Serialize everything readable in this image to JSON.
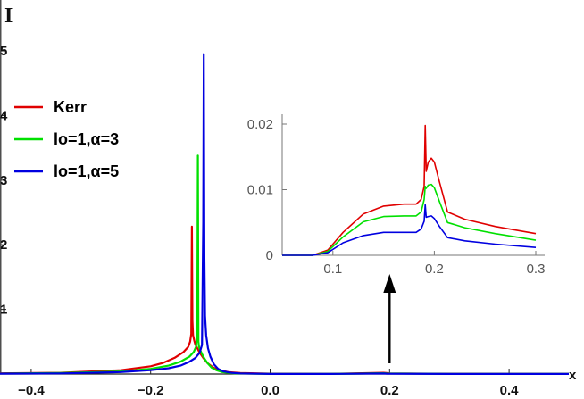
{
  "chart_data": {
    "type": "line",
    "ylabel": "I",
    "xlabel": "x",
    "xlim": [
      -0.5,
      0.5
    ],
    "ylim": [
      0,
      5.1
    ],
    "xticks": [
      -0.4,
      -0.2,
      0.0,
      0.2,
      0.4
    ],
    "xtick_labels": [
      "−0.4",
      "−0.2",
      "0.0",
      "0.2",
      "0.4"
    ],
    "yticks": [
      1,
      2,
      3,
      4,
      5
    ],
    "ytick_labels": [
      "1",
      "2",
      "3",
      "4",
      "5"
    ],
    "legend_position": "upper-left",
    "series": [
      {
        "name": "Kerr",
        "color": "#e00000",
        "x": [
          -0.5,
          -0.35,
          -0.25,
          -0.2,
          -0.18,
          -0.16,
          -0.145,
          -0.137,
          -0.134,
          -0.132,
          -0.131,
          -0.13,
          -0.129,
          -0.127,
          -0.125,
          -0.122,
          -0.118,
          -0.112,
          -0.105,
          -0.095,
          -0.085,
          -0.07,
          -0.05,
          0.0,
          0.1,
          0.19,
          0.195,
          0.2,
          0.3,
          0.5
        ],
        "y": [
          0.005,
          0.02,
          0.06,
          0.12,
          0.17,
          0.25,
          0.34,
          0.42,
          0.5,
          0.62,
          2.28,
          0.82,
          0.6,
          0.52,
          0.45,
          0.4,
          0.33,
          0.25,
          0.17,
          0.1,
          0.06,
          0.03,
          0.015,
          0.005,
          0.003,
          0.02,
          0.015,
          0.01,
          0.004,
          0.002
        ]
      },
      {
        "name": "lo=1,α=3",
        "color": "#00e000",
        "x": [
          -0.5,
          -0.35,
          -0.25,
          -0.2,
          -0.17,
          -0.15,
          -0.135,
          -0.128,
          -0.124,
          -0.122,
          -0.121,
          -0.12,
          -0.119,
          -0.117,
          -0.114,
          -0.11,
          -0.105,
          -0.098,
          -0.09,
          -0.08,
          -0.06,
          0.0,
          0.1,
          0.19,
          0.195,
          0.3,
          0.5
        ],
        "y": [
          0.004,
          0.015,
          0.04,
          0.08,
          0.13,
          0.19,
          0.27,
          0.34,
          0.42,
          0.6,
          3.38,
          0.5,
          0.42,
          0.37,
          0.31,
          0.24,
          0.17,
          0.1,
          0.06,
          0.03,
          0.01,
          0.003,
          0.002,
          0.012,
          0.01,
          0.003,
          0.001
        ]
      },
      {
        "name": "lo=1,α=5",
        "color": "#0000e0",
        "x": [
          -0.5,
          -0.35,
          -0.25,
          -0.2,
          -0.17,
          -0.15,
          -0.135,
          -0.125,
          -0.118,
          -0.114,
          -0.112,
          -0.111,
          -0.11,
          -0.109,
          -0.107,
          -0.104,
          -0.1,
          -0.094,
          -0.087,
          -0.078,
          -0.065,
          -0.05,
          0.0,
          0.1,
          0.19,
          0.195,
          0.3,
          0.5
        ],
        "y": [
          0.003,
          0.01,
          0.03,
          0.06,
          0.09,
          0.13,
          0.19,
          0.25,
          0.33,
          0.45,
          2.35,
          4.95,
          1.8,
          0.9,
          0.6,
          0.4,
          0.27,
          0.15,
          0.08,
          0.04,
          0.02,
          0.01,
          0.002,
          0.001,
          0.008,
          0.006,
          0.002,
          0.001
        ]
      }
    ],
    "inset": {
      "xlim": [
        0.05,
        0.3
      ],
      "ylim": [
        0,
        0.02
      ],
      "xticks": [
        0.1,
        0.2,
        0.3
      ],
      "xtick_labels": [
        "0.1",
        "0.2",
        "0.3"
      ],
      "yticks": [
        0,
        0.01,
        0.02
      ],
      "ytick_labels": [
        "0",
        "0.01",
        "0.02"
      ],
      "series": [
        {
          "name": "Kerr",
          "color": "#e00000",
          "x": [
            0.05,
            0.08,
            0.095,
            0.11,
            0.13,
            0.15,
            0.17,
            0.182,
            0.187,
            0.19,
            0.191,
            0.192,
            0.194,
            0.197,
            0.2,
            0.205,
            0.213,
            0.23,
            0.26,
            0.3
          ],
          "y": [
            0,
            0,
            0.0008,
            0.0035,
            0.0063,
            0.0075,
            0.0078,
            0.0078,
            0.0085,
            0.0105,
            0.0198,
            0.0128,
            0.0142,
            0.0148,
            0.0142,
            0.0112,
            0.0066,
            0.0055,
            0.0044,
            0.0033
          ]
        },
        {
          "name": "lo=1,α=3",
          "color": "#00e000",
          "x": [
            0.05,
            0.08,
            0.095,
            0.11,
            0.13,
            0.15,
            0.17,
            0.182,
            0.187,
            0.19,
            0.191,
            0.192,
            0.194,
            0.197,
            0.2,
            0.205,
            0.213,
            0.23,
            0.26,
            0.3
          ],
          "y": [
            0,
            0,
            0.0006,
            0.0028,
            0.0051,
            0.0059,
            0.006,
            0.006,
            0.0066,
            0.0085,
            0.0105,
            0.0102,
            0.0107,
            0.0108,
            0.0103,
            0.0082,
            0.005,
            0.0042,
            0.0033,
            0.0023
          ]
        },
        {
          "name": "lo=1,α=5",
          "color": "#0000e0",
          "x": [
            0.05,
            0.08,
            0.095,
            0.11,
            0.13,
            0.15,
            0.17,
            0.182,
            0.187,
            0.19,
            0.191,
            0.192,
            0.194,
            0.197,
            0.2,
            0.205,
            0.213,
            0.23,
            0.26,
            0.3
          ],
          "y": [
            0,
            0,
            0.0004,
            0.0019,
            0.003,
            0.0035,
            0.0035,
            0.0035,
            0.004,
            0.0052,
            0.0077,
            0.0058,
            0.0059,
            0.006,
            0.0056,
            0.0044,
            0.0027,
            0.0022,
            0.0017,
            0.0012
          ]
        }
      ]
    },
    "annotation": {
      "type": "arrow",
      "points_to": "inset",
      "x": 0.2
    }
  }
}
